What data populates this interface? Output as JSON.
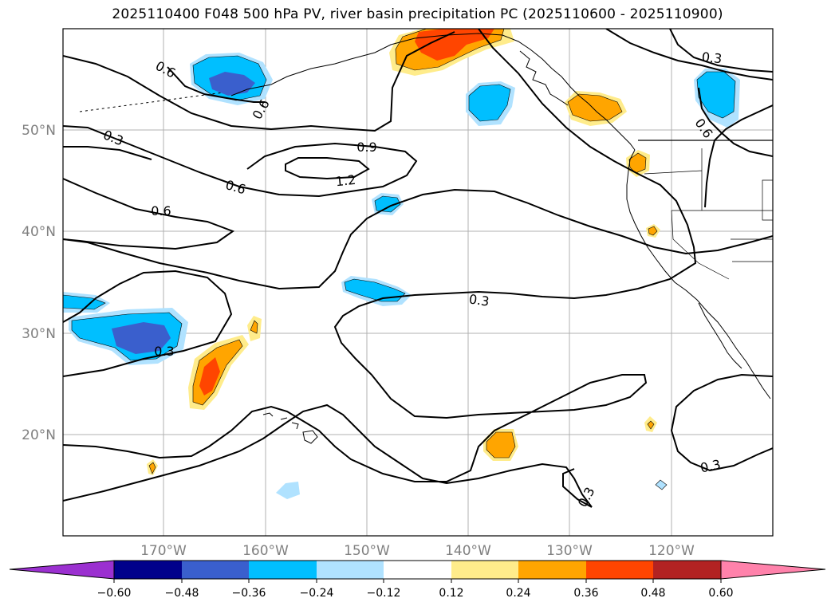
{
  "title": "2025110400 F048 500 hPa PV, river basin precipitation PC (2025110600 - 2025110900)",
  "axes": {
    "lat_labels": [
      "50°N",
      "40°N",
      "30°N",
      "20°N"
    ],
    "lon_labels": [
      "170°W",
      "160°W",
      "150°W",
      "140°W",
      "130°W",
      "120°W"
    ]
  },
  "contour_labels": [
    "0.6",
    "0.6",
    "0.3",
    "0.9",
    "1.2",
    "0.6",
    "0.6",
    "0.3",
    "0.6",
    "0.3",
    "0.3",
    "0.3",
    "0.3"
  ],
  "colorbar": {
    "tick_labels": [
      "−0.60",
      "−0.48",
      "−0.36",
      "−0.24",
      "−0.12",
      "0.12",
      "0.24",
      "0.36",
      "0.48",
      "0.60"
    ],
    "colors": [
      "#9b30d0",
      "#00008b",
      "#3a5fcd",
      "#00bfff",
      "#b0e2ff",
      "#ffffff",
      "#ffec8b",
      "#ffa500",
      "#ff4500",
      "#b22222",
      "#ff82ab"
    ]
  },
  "fill_colors": {
    "neg_light": "#b0e2ff",
    "neg_mid": "#00bfff",
    "neg_strong": "#3a5fcd",
    "pos_light": "#ffec8b",
    "pos_mid": "#ffa500",
    "pos_strong": "#ff4500"
  }
}
